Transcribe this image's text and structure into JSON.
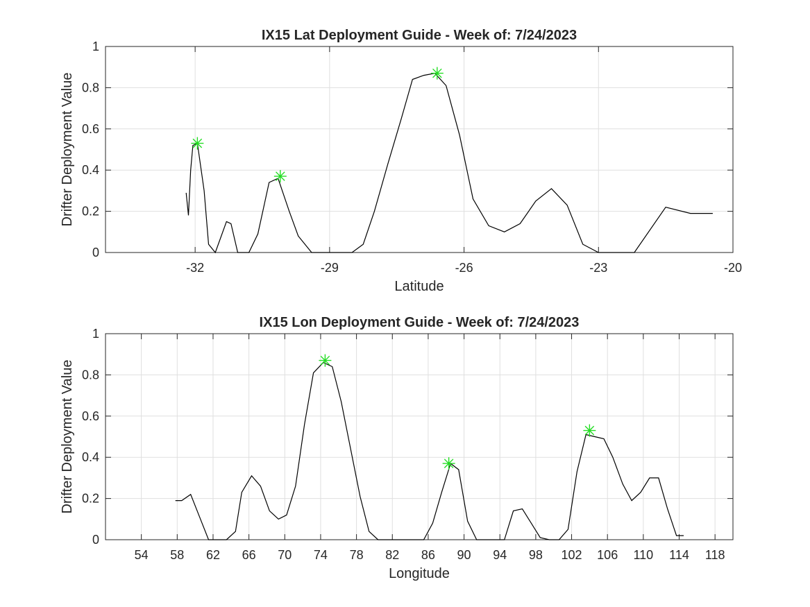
{
  "chart_data": [
    {
      "type": "line",
      "title": "IX15 Lat Deployment Guide - Week of: 7/24/2023",
      "xlabel": "Latitude",
      "ylabel": "Drifter Deployment Value",
      "xlim": [
        -34.0,
        -20.0
      ],
      "ylim": [
        0,
        1
      ],
      "xticks": [
        -32,
        -29,
        -26,
        -23,
        -20
      ],
      "xticklabels": [
        "-32",
        "-29",
        "-26",
        "-23",
        "-20"
      ],
      "yticks": [
        0,
        0.2,
        0.4,
        0.6,
        0.8,
        1
      ],
      "yticklabels": [
        "0",
        "0.2",
        "0.4",
        "0.6",
        "0.8",
        "1"
      ],
      "grid": true,
      "series": [
        {
          "x": [
            -32.2,
            -32.15,
            -32.1,
            -32.05,
            -31.95,
            -31.8,
            -31.7,
            -31.55,
            -31.3,
            -31.2,
            -31.05,
            -30.8,
            -30.6,
            -30.35,
            -30.15,
            -29.9,
            -29.7,
            -29.4,
            -28.5,
            -28.25,
            -28.0,
            -27.7,
            -27.4,
            -27.15,
            -26.9,
            -26.65,
            -26.4,
            -26.1,
            -25.8,
            -25.45,
            -25.1,
            -24.75,
            -24.4,
            -24.05,
            -23.7,
            -23.35,
            -23.0,
            -22.2,
            -21.5,
            -20.95,
            -20.45
          ],
          "y": [
            0.29,
            0.18,
            0.4,
            0.52,
            0.53,
            0.3,
            0.04,
            0.0,
            0.15,
            0.14,
            0.0,
            0.0,
            0.09,
            0.34,
            0.36,
            0.2,
            0.08,
            0.0,
            0.0,
            0.04,
            0.2,
            0.43,
            0.65,
            0.84,
            0.86,
            0.87,
            0.81,
            0.57,
            0.26,
            0.13,
            0.1,
            0.14,
            0.25,
            0.31,
            0.23,
            0.04,
            0.0,
            0.0,
            0.22,
            0.19,
            0.19
          ]
        }
      ],
      "markers": [
        {
          "x": -31.95,
          "y": 0.53
        },
        {
          "x": -30.1,
          "y": 0.37
        },
        {
          "x": -26.6,
          "y": 0.87
        }
      ],
      "marker_color": "#22dd22"
    },
    {
      "type": "line",
      "title": "IX15 Lon Deployment Guide - Week of: 7/24/2023",
      "xlabel": "Longitude",
      "ylabel": "Drifter Deployment Value",
      "xlim": [
        50,
        120
      ],
      "ylim": [
        0,
        1
      ],
      "xticks": [
        54,
        58,
        62,
        66,
        70,
        74,
        78,
        82,
        86,
        90,
        94,
        98,
        102,
        106,
        110,
        114,
        118
      ],
      "xticklabels": [
        "54",
        "58",
        "62",
        "66",
        "70",
        "74",
        "78",
        "82",
        "86",
        "90",
        "94",
        "98",
        "102",
        "106",
        "110",
        "114",
        "118"
      ],
      "yticks": [
        0,
        0.2,
        0.4,
        0.6,
        0.8,
        1
      ],
      "yticklabels": [
        "0",
        "0.2",
        "0.4",
        "0.6",
        "0.8",
        "1"
      ],
      "grid": true,
      "series": [
        {
          "x": [
            57.8,
            58.5,
            59.5,
            60.5,
            61.5,
            62.5,
            63.5,
            64.5,
            65.2,
            66.3,
            67.3,
            68.3,
            69.3,
            70.2,
            71.2,
            72.2,
            73.2,
            74.3,
            75.3,
            76.3,
            77.3,
            78.4,
            79.4,
            80.4,
            81.4,
            82.4,
            83.5,
            84.5,
            85.5,
            86.5,
            87.5,
            88.5,
            89.4,
            90.4,
            91.4,
            92.4,
            93.5,
            94.5,
            95.5,
            96.5,
            97.5,
            98.5,
            99.5,
            100.6,
            101.6,
            102.6,
            103.6,
            104.6,
            105.6,
            106.6,
            107.7,
            108.7,
            109.7,
            110.7,
            111.7,
            112.7,
            113.7,
            114.5
          ],
          "y": [
            0.19,
            0.19,
            0.22,
            0.11,
            0.0,
            0.0,
            0.0,
            0.04,
            0.23,
            0.31,
            0.26,
            0.14,
            0.1,
            0.12,
            0.26,
            0.56,
            0.81,
            0.86,
            0.84,
            0.67,
            0.45,
            0.21,
            0.04,
            0.0,
            0.0,
            0.0,
            0.0,
            0.0,
            0.0,
            0.08,
            0.23,
            0.37,
            0.34,
            0.09,
            0.0,
            0.0,
            0.0,
            0.0,
            0.14,
            0.15,
            0.08,
            0.01,
            0.0,
            0.0,
            0.05,
            0.33,
            0.51,
            0.5,
            0.49,
            0.4,
            0.27,
            0.19,
            0.23,
            0.3,
            0.3,
            0.15,
            0.02,
            0.02
          ]
        }
      ],
      "markers": [
        {
          "x": 74.5,
          "y": 0.87
        },
        {
          "x": 88.3,
          "y": 0.37
        },
        {
          "x": 104.0,
          "y": 0.53
        }
      ],
      "marker_color": "#22dd22"
    }
  ]
}
